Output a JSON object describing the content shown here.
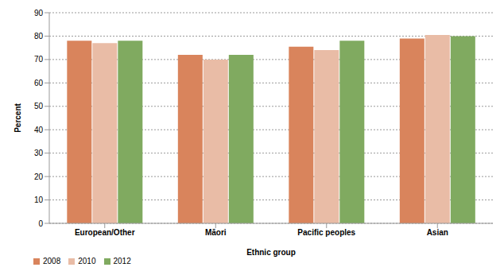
{
  "chart_data": {
    "type": "bar",
    "x_label": "Ethnic group",
    "y_label": "Percent",
    "categories": [
      "European/Other",
      "Māori",
      "Pacific peoples",
      "Asian"
    ],
    "series": [
      {
        "name": "2008",
        "color": "#d9845c",
        "values": [
          78,
          72,
          75.5,
          79
        ]
      },
      {
        "name": "2010",
        "color": "#e9bca6",
        "values": [
          77,
          70,
          74,
          80.5
        ]
      },
      {
        "name": "2012",
        "color": "#80aa60",
        "values": [
          78,
          72,
          78,
          80
        ]
      }
    ],
    "ylim": [
      0,
      90
    ],
    "yticks": [
      0,
      10,
      20,
      30,
      40,
      50,
      60,
      70,
      80,
      90
    ],
    "grid": true,
    "legend": "bottom-left"
  }
}
